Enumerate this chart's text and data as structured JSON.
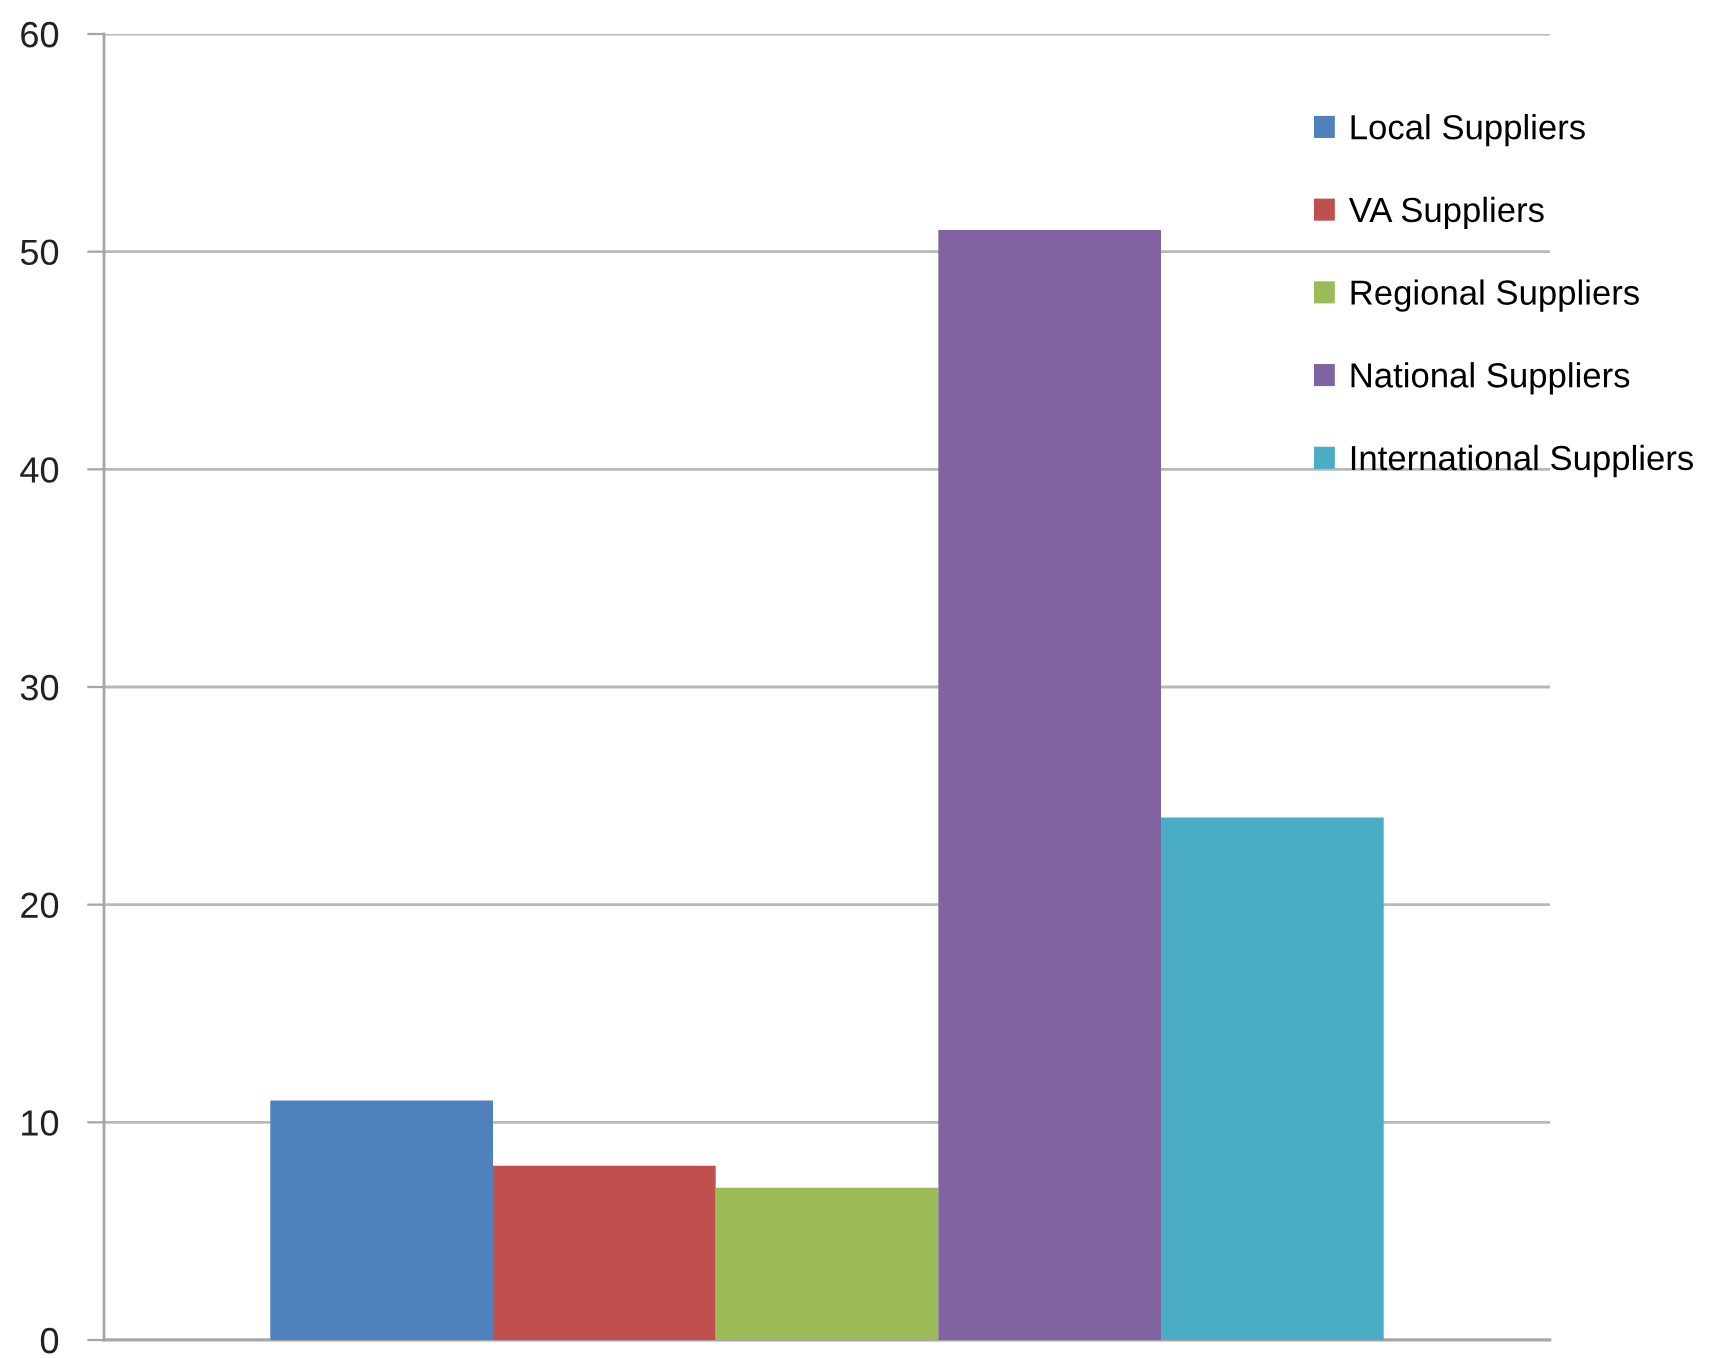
{
  "chart_data": {
    "type": "bar",
    "categories": [
      null
    ],
    "series": [
      {
        "name": "Local Suppliers",
        "color": "#4f81bd",
        "values": [
          11
        ]
      },
      {
        "name": "VA Suppliers",
        "color": "#c0504d",
        "values": [
          8
        ]
      },
      {
        "name": "Regional Suppliers",
        "color": "#9bbb59",
        "values": [
          7
        ]
      },
      {
        "name": "National Suppliers",
        "color": "#8064a2",
        "values": [
          51
        ]
      },
      {
        "name": "International Suppliers",
        "color": "#4bacc6",
        "values": [
          24
        ]
      }
    ],
    "ylim": [
      0,
      60
    ],
    "yticks": [
      0,
      10,
      20,
      30,
      40,
      50,
      60
    ],
    "grid": "y",
    "legend": "top right"
  }
}
